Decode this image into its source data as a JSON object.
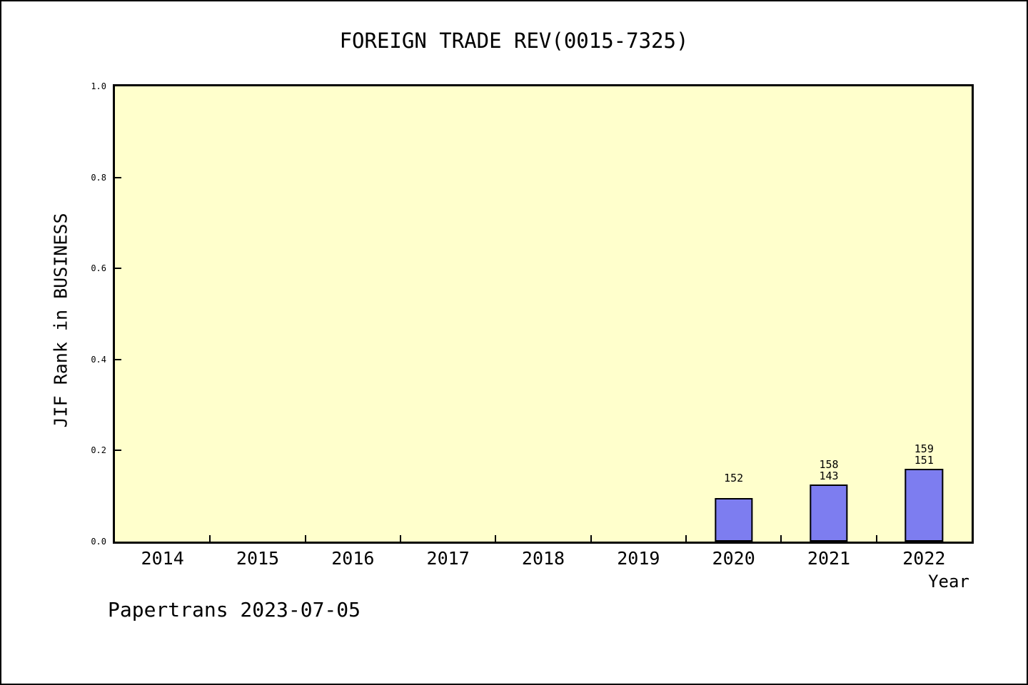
{
  "footer": {
    "text": "Papertrans 2023-07-05"
  },
  "colors": {
    "page_bg": "#FFFFFF",
    "frame": "#000000",
    "plot_bg": "#FFFFCC",
    "bar_fill": "#7D7DF0",
    "bar_edge": "#000000",
    "axis": "#000000",
    "text": "#000000"
  },
  "chart_data": {
    "type": "bar",
    "title": "FOREIGN TRADE REV(0015-7325)",
    "xlabel": "Year",
    "ylabel": "JIF Rank in BUSINESS",
    "categories": [
      "2014",
      "2015",
      "2016",
      "2017",
      "2018",
      "2019",
      "2020",
      "2021",
      "2022"
    ],
    "values": [
      null,
      null,
      null,
      null,
      null,
      null,
      0.095,
      0.126,
      0.16
    ],
    "bar_labels": [
      [],
      [],
      [],
      [],
      [],
      [],
      [
        "152"
      ],
      [
        "158",
        "143"
      ],
      [
        "159",
        "151"
      ]
    ],
    "ylim": [
      0.0,
      1.0
    ],
    "yticks": [
      0.0,
      0.2,
      0.4,
      0.6,
      0.8,
      1.0
    ],
    "ytick_labels": [
      "0.0",
      "0.2",
      "0.4",
      "0.6",
      "0.8",
      "1.0"
    ],
    "grid": false,
    "legend": null
  }
}
